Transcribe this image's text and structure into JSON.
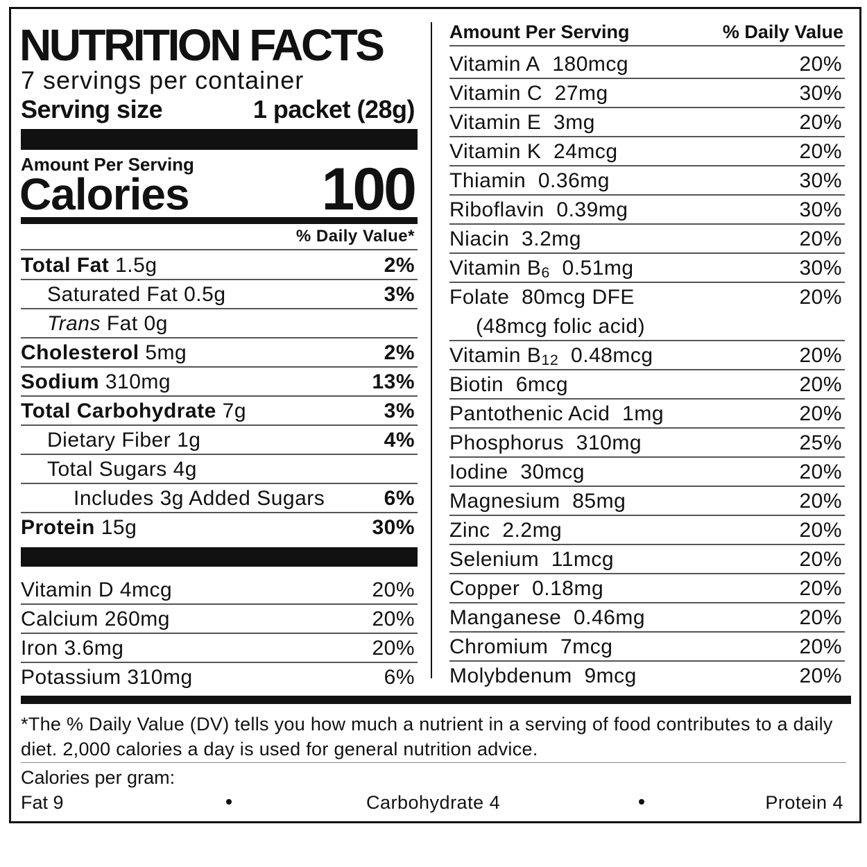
{
  "header": {
    "title": "NUTRITION FACTS",
    "servings": "7 servings per container",
    "serving_size_label": "Serving size",
    "serving_size": "1 packet (28g)"
  },
  "calories": {
    "heading": "Amount Per Serving",
    "label": "Calories",
    "value": "100"
  },
  "daily_value_heading": "% Daily Value*",
  "nutrients": [
    {
      "name": "Total Fat",
      "amount": "1.5g",
      "dv": "2%"
    },
    {
      "name": "Saturated Fat",
      "amount": "0.5g",
      "dv": "3%"
    },
    {
      "name": "Trans",
      "name_rest": "Fat",
      "amount": "0g"
    },
    {
      "name": "Cholesterol",
      "amount": "5mg",
      "dv": "2%"
    },
    {
      "name": "Sodium",
      "amount": "310mg",
      "dv": "13%"
    },
    {
      "name": "Total Carbohydrate",
      "amount": "7g",
      "dv": "3%"
    },
    {
      "name": "Dietary Fiber",
      "amount": "1g",
      "dv": "4%"
    },
    {
      "name": "Total Sugars",
      "amount": "4g"
    },
    {
      "name": "Includes 3g Added Sugars",
      "dv": "6%"
    },
    {
      "name": "Protein",
      "amount": "15g",
      "dv": "30%"
    }
  ],
  "vitamins_left": [
    {
      "name": "Vitamin D",
      "amount": "4mcg",
      "dv": "20%"
    },
    {
      "name": "Calcium",
      "amount": "260mg",
      "dv": "20%"
    },
    {
      "name": "Iron",
      "amount": "3.6mg",
      "dv": "20%"
    },
    {
      "name": "Potassium",
      "amount": "310mg",
      "dv": "6%"
    }
  ],
  "right_header": {
    "amount": "Amount Per Serving",
    "dv": "% Daily Value"
  },
  "vitamins_right": [
    {
      "name": "Vitamin A",
      "amount": "180mcg",
      "dv": "20%"
    },
    {
      "name": "Vitamin C",
      "amount": "27mg",
      "dv": "30%"
    },
    {
      "name": "Vitamin E",
      "amount": "3mg",
      "dv": "20%"
    },
    {
      "name": "Vitamin K",
      "amount": "24mcg",
      "dv": "20%"
    },
    {
      "name": "Thiamin",
      "amount": "0.36mg",
      "dv": "30%"
    },
    {
      "name": "Riboflavin",
      "amount": "0.39mg",
      "dv": "30%"
    },
    {
      "name": "Niacin",
      "amount": "3.2mg",
      "dv": "20%"
    },
    {
      "name": "Vitamin B",
      "subscript": "6",
      "amount": "0.51mg",
      "dv": "30%"
    },
    {
      "name": "Folate",
      "amount": "80mcg DFE",
      "note": "(48mcg folic acid)",
      "dv": "20%"
    },
    {
      "name": "Vitamin B",
      "subscript": "12",
      "amount": "0.48mcg",
      "dv": "20%"
    },
    {
      "name": "Biotin",
      "amount": "6mcg",
      "dv": "20%"
    },
    {
      "name": "Pantothenic Acid",
      "amount": "1mg",
      "dv": "20%"
    },
    {
      "name": "Phosphorus",
      "amount": "310mg",
      "dv": "25%"
    },
    {
      "name": "Iodine",
      "amount": "30mcg",
      "dv": "20%"
    },
    {
      "name": "Magnesium",
      "amount": "85mg",
      "dv": "20%"
    },
    {
      "name": "Zinc",
      "amount": "2.2mg",
      "dv": "20%"
    },
    {
      "name": "Selenium",
      "amount": "11mcg",
      "dv": "20%"
    },
    {
      "name": "Copper",
      "amount": "0.18mg",
      "dv": "20%"
    },
    {
      "name": "Manganese",
      "amount": "0.46mg",
      "dv": "20%"
    },
    {
      "name": "Chromium",
      "amount": "7mcg",
      "dv": "20%"
    },
    {
      "name": "Molybdenum",
      "amount": "9mcg",
      "dv": "20%"
    }
  ],
  "footer": {
    "note": "*The % Daily Value (DV) tells you how much a nutrient in a serving of food contributes to a daily diet. 2,000 calories a day is used for general nutrition advice.",
    "calories_per_gram": "Calories per gram:",
    "fat": "Fat 9",
    "carbohydrate": "Carbohydrate 4",
    "protein": "Protein 4"
  }
}
